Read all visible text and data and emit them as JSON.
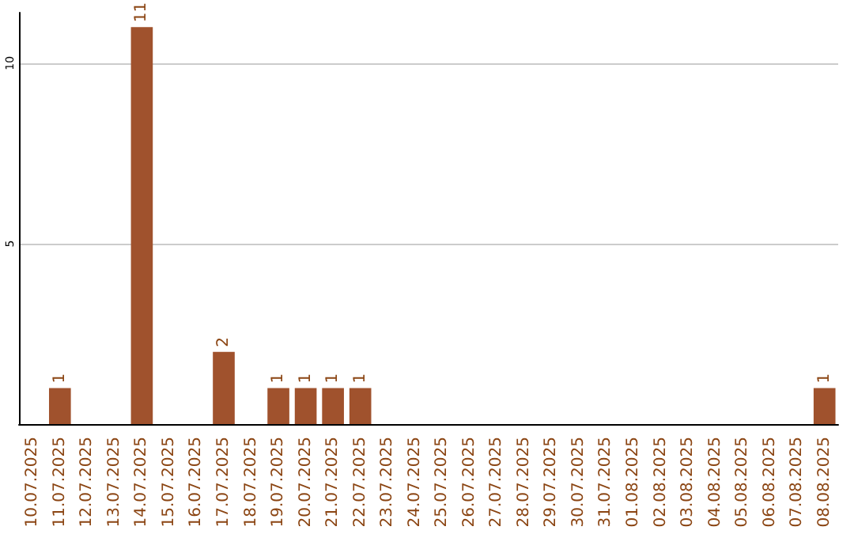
{
  "chart_data": {
    "type": "bar",
    "categories": [
      "10.07.2025",
      "11.07.2025",
      "12.07.2025",
      "13.07.2025",
      "14.07.2025",
      "15.07.2025",
      "16.07.2025",
      "17.07.2025",
      "18.07.2025",
      "19.07.2025",
      "20.07.2025",
      "21.07.2025",
      "22.07.2025",
      "23.07.2025",
      "24.07.2025",
      "25.07.2025",
      "26.07.2025",
      "27.07.2025",
      "28.07.2025",
      "29.07.2025",
      "30.07.2025",
      "31.07.2025",
      "01.08.2025",
      "02.08.2025",
      "03.08.2025",
      "04.08.2025",
      "05.08.2025",
      "06.08.2025",
      "07.08.2025",
      "08.08.2025"
    ],
    "values": [
      0,
      1,
      0,
      0,
      11,
      0,
      0,
      2,
      0,
      1,
      1,
      1,
      1,
      0,
      0,
      0,
      0,
      0,
      0,
      0,
      0,
      0,
      0,
      0,
      0,
      0,
      0,
      0,
      0,
      1
    ],
    "value_labels": [
      null,
      "1",
      null,
      null,
      "11",
      null,
      null,
      "2",
      null,
      "1",
      "1",
      "1",
      "1",
      null,
      null,
      null,
      null,
      null,
      null,
      null,
      null,
      null,
      null,
      null,
      null,
      null,
      null,
      null,
      null,
      "1"
    ],
    "color": "#a0522d",
    "ylim": [
      0,
      11.4
    ],
    "yticks": [
      {
        "value": 0,
        "label": null
      },
      5,
      10
    ],
    "grid": "y"
  }
}
